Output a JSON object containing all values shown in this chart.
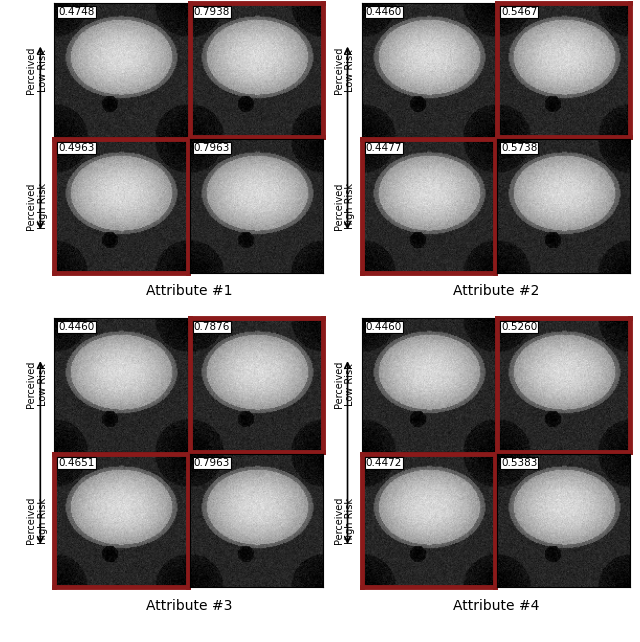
{
  "attributes": [
    "Attribute #1",
    "Attribute #2",
    "Attribute #3",
    "Attribute #4"
  ],
  "scores": [
    [
      [
        0.4748,
        0.7938
      ],
      [
        0.4963,
        0.7963
      ]
    ],
    [
      [
        0.446,
        0.5467
      ],
      [
        0.4477,
        0.5738
      ]
    ],
    [
      [
        0.446,
        0.7876
      ],
      [
        0.4651,
        0.7963
      ]
    ],
    [
      [
        0.446,
        0.526
      ],
      [
        0.4472,
        0.5383
      ]
    ]
  ],
  "red_border": [
    [
      [
        false,
        true
      ],
      [
        true,
        false
      ]
    ],
    [
      [
        false,
        true
      ],
      [
        true,
        false
      ]
    ],
    [
      [
        false,
        true
      ],
      [
        true,
        false
      ]
    ],
    [
      [
        false,
        true
      ],
      [
        true,
        false
      ]
    ]
  ],
  "row_labels_top": "Perceived\nLow Risk",
  "row_labels_bottom": "Perceived\nHigh Risk",
  "border_color": "#8B1A1A",
  "border_linewidth": 3.5,
  "text_fontsize": 8,
  "label_fontsize": 8,
  "attr_fontsize": 10,
  "background": "#f0f0f0"
}
